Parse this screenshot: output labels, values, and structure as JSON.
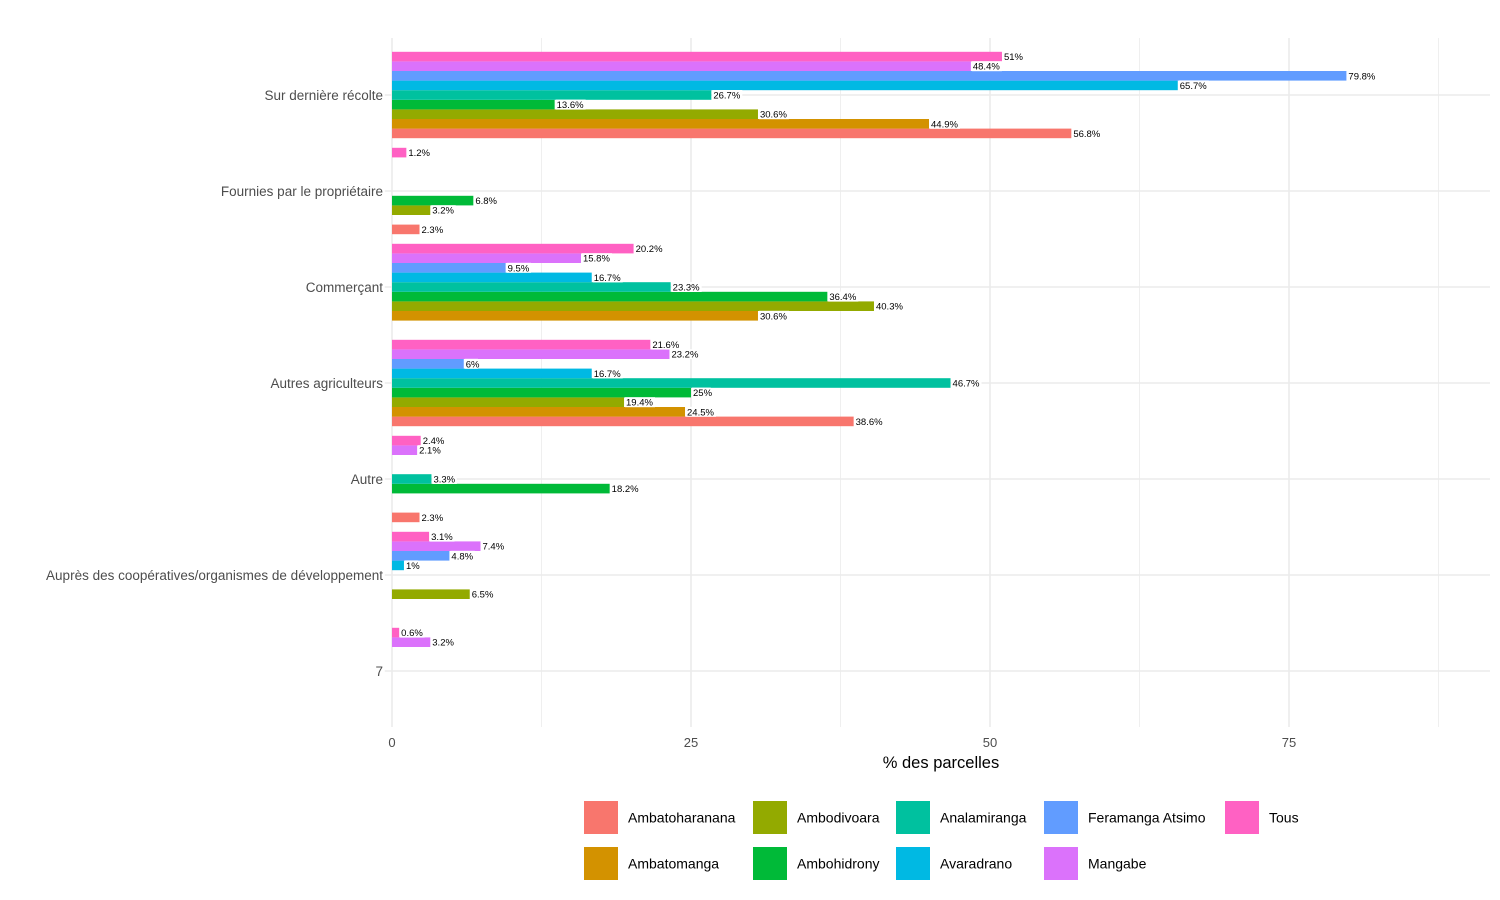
{
  "chart_data": {
    "type": "bar",
    "orientation": "horizontal",
    "title": "",
    "xlabel": "% des parcelles",
    "ylabel": "",
    "xlim": [
      0,
      90
    ],
    "x_ticks": [
      0,
      25,
      50,
      75
    ],
    "x_tick_labels": [
      "0",
      "25",
      "50",
      "75"
    ],
    "grid": true,
    "legend_position": "bottom",
    "value_label_suffix": "%",
    "categories": [
      "Sur dernière récolte",
      "Fournies par le propriétaire",
      "Commerçant",
      "Autres agriculteurs",
      "Autre",
      "Auprès des coopératives/organismes de développement",
      "7"
    ],
    "series": [
      {
        "name": "Ambatoharanana",
        "color": "#F8766D",
        "values": [
          56.8,
          2.3,
          null,
          38.6,
          2.3,
          null,
          null
        ]
      },
      {
        "name": "Ambatomanga",
        "color": "#D39200",
        "values": [
          44.9,
          null,
          30.6,
          24.5,
          null,
          null,
          null
        ]
      },
      {
        "name": "Ambodivoara",
        "color": "#93AA00",
        "values": [
          30.6,
          3.2,
          40.3,
          19.4,
          null,
          6.5,
          null
        ]
      },
      {
        "name": "Ambohidrony",
        "color": "#00BA38",
        "values": [
          13.6,
          6.8,
          36.4,
          25,
          18.2,
          null,
          null
        ]
      },
      {
        "name": "Analamiranga",
        "color": "#00C19F",
        "values": [
          26.7,
          null,
          23.3,
          46.7,
          3.3,
          null,
          null
        ]
      },
      {
        "name": "Avaradrano",
        "color": "#00B9E3",
        "values": [
          65.7,
          null,
          16.7,
          16.7,
          null,
          1,
          null
        ]
      },
      {
        "name": "Feramanga Atsimo",
        "color": "#619CFF",
        "values": [
          79.8,
          null,
          9.5,
          6,
          null,
          4.8,
          null
        ]
      },
      {
        "name": "Mangabe",
        "color": "#DB72FB",
        "values": [
          48.4,
          null,
          15.8,
          23.2,
          2.1,
          7.4,
          3.2
        ]
      },
      {
        "name": "Tous",
        "color": "#FF61C3",
        "values": [
          51,
          1.2,
          20.2,
          21.6,
          2.4,
          3.1,
          0.6
        ]
      }
    ],
    "legend": {
      "rows": [
        [
          "Ambatoharanana",
          "Ambodivoara",
          "Analamiranga",
          "Feramanga Atsimo",
          "Tous"
        ],
        [
          "Ambatomanga",
          "Ambohidrony",
          "Avaradrano",
          "Mangabe"
        ]
      ]
    }
  }
}
